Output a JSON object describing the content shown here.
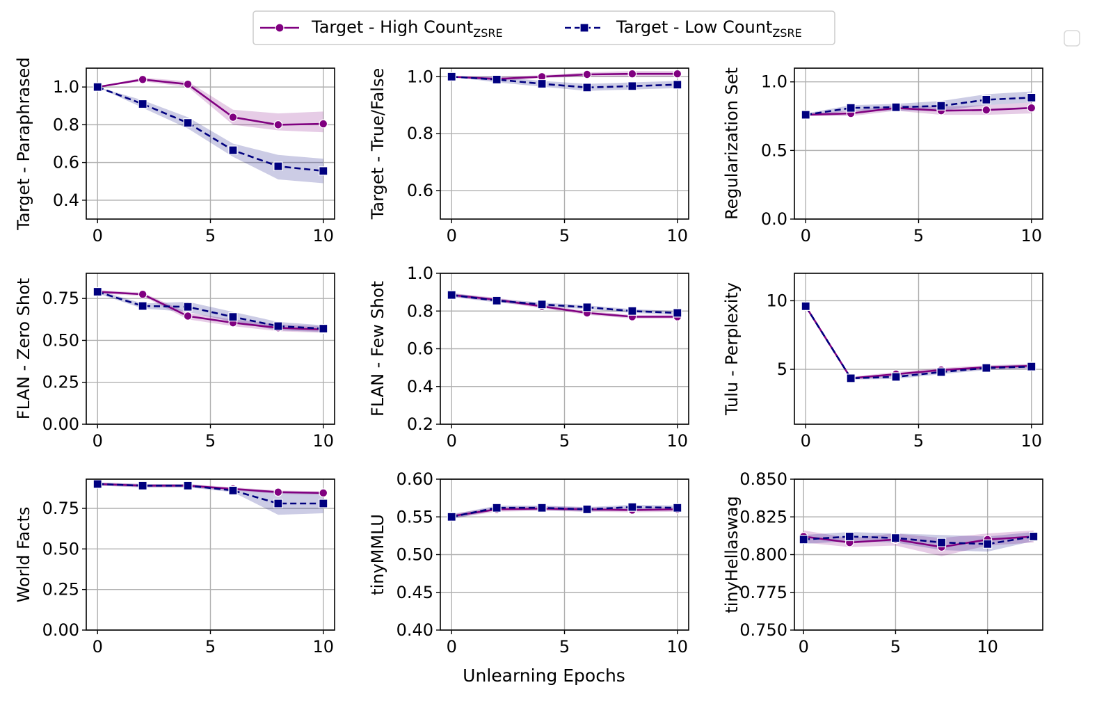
{
  "figure": {
    "xlabel": "Unlearning Epochs",
    "legend": {
      "placement": "top-center",
      "entries": [
        {
          "name": "Target - High Count",
          "sub": "ZSRE",
          "color": "#800080",
          "marker": "circle",
          "dash": "solid"
        },
        {
          "name": "Target - Low Count",
          "sub": "ZSRE",
          "color": "#00007f",
          "marker": "square",
          "dash": "dashed"
        }
      ]
    }
  },
  "chart_data": [
    {
      "type": "line",
      "ylabel": "Target - Paraphrased",
      "xlim": [
        -0.5,
        10.5
      ],
      "ylim": [
        0.3,
        1.1
      ],
      "xticks": [
        0,
        5,
        10
      ],
      "yticks": [
        0.4,
        0.6,
        0.8,
        1.0
      ],
      "ytick_labels": [
        "0.4",
        "0.6",
        "0.8",
        "1.0"
      ],
      "x": [
        0,
        2,
        4,
        6,
        8,
        10
      ],
      "series": [
        {
          "name": "Target - High Count ZSRE",
          "values": [
            1.0,
            1.04,
            1.015,
            0.84,
            0.8,
            0.805
          ],
          "band": [
            [
              1.0,
              1.0
            ],
            [
              1.03,
              1.05
            ],
            [
              1.0,
              1.03
            ],
            [
              0.8,
              0.88
            ],
            [
              0.77,
              0.86
            ],
            [
              0.76,
              0.87
            ]
          ]
        },
        {
          "name": "Target - Low Count ZSRE",
          "values": [
            1.0,
            0.91,
            0.81,
            0.665,
            0.58,
            0.555
          ],
          "band": [
            [
              1.0,
              1.0
            ],
            [
              0.89,
              0.93
            ],
            [
              0.78,
              0.84
            ],
            [
              0.63,
              0.7
            ],
            [
              0.51,
              0.64
            ],
            [
              0.49,
              0.62
            ]
          ]
        }
      ]
    },
    {
      "type": "line",
      "ylabel": "Target - True/False",
      "xlim": [
        -0.5,
        10.5
      ],
      "ylim": [
        0.5,
        1.03
      ],
      "xticks": [
        0,
        5,
        10
      ],
      "yticks": [
        0.6,
        0.8,
        1.0
      ],
      "ytick_labels": [
        "0.6",
        "0.8",
        "1.0"
      ],
      "x": [
        0,
        2,
        4,
        6,
        8,
        10
      ],
      "series": [
        {
          "name": "Target - High Count ZSRE",
          "values": [
            1.0,
            0.992,
            1.0,
            1.008,
            1.01,
            1.01
          ],
          "band": [
            [
              1.0,
              1.0
            ],
            [
              0.985,
              1.0
            ],
            [
              0.995,
              1.005
            ],
            [
              1.0,
              1.015
            ],
            [
              1.0,
              1.02
            ],
            [
              1.0,
              1.02
            ]
          ]
        },
        {
          "name": "Target - Low Count ZSRE",
          "values": [
            1.0,
            0.99,
            0.975,
            0.962,
            0.967,
            0.972
          ],
          "band": [
            [
              1.0,
              1.0
            ],
            [
              0.98,
              1.0
            ],
            [
              0.965,
              0.985
            ],
            [
              0.95,
              0.975
            ],
            [
              0.955,
              0.98
            ],
            [
              0.96,
              0.985
            ]
          ]
        }
      ]
    },
    {
      "type": "line",
      "ylabel": "Regularization Set",
      "xlim": [
        -0.5,
        10.5
      ],
      "ylim": [
        0.0,
        1.1
      ],
      "xticks": [
        0,
        5,
        10
      ],
      "yticks": [
        0.0,
        0.5,
        1.0
      ],
      "ytick_labels": [
        "0.0",
        "0.5",
        "1.0"
      ],
      "x": [
        0,
        2,
        4,
        6,
        8,
        10
      ],
      "series": [
        {
          "name": "Target - High Count ZSRE",
          "values": [
            0.76,
            0.77,
            0.81,
            0.79,
            0.795,
            0.81
          ],
          "band": [
            [
              0.75,
              0.77
            ],
            [
              0.75,
              0.79
            ],
            [
              0.79,
              0.83
            ],
            [
              0.76,
              0.82
            ],
            [
              0.76,
              0.83
            ],
            [
              0.77,
              0.85
            ]
          ]
        },
        {
          "name": "Target - Low Count ZSRE",
          "values": [
            0.76,
            0.81,
            0.815,
            0.825,
            0.87,
            0.885
          ],
          "band": [
            [
              0.75,
              0.77
            ],
            [
              0.79,
              0.83
            ],
            [
              0.79,
              0.84
            ],
            [
              0.79,
              0.86
            ],
            [
              0.83,
              0.91
            ],
            [
              0.85,
              0.93
            ]
          ]
        }
      ]
    },
    {
      "type": "line",
      "ylabel": "FLAN - Zero Shot",
      "xlim": [
        -0.5,
        10.5
      ],
      "ylim": [
        0.0,
        0.9
      ],
      "xticks": [
        0,
        5,
        10
      ],
      "yticks": [
        0.0,
        0.25,
        0.5,
        0.75
      ],
      "ytick_labels": [
        "0.00",
        "0.25",
        "0.50",
        "0.75"
      ],
      "x": [
        0,
        2,
        4,
        6,
        8,
        10
      ],
      "series": [
        {
          "name": "Target - High Count ZSRE",
          "values": [
            0.79,
            0.775,
            0.645,
            0.605,
            0.575,
            0.565
          ],
          "band": [
            [
              0.78,
              0.8
            ],
            [
              0.765,
              0.785
            ],
            [
              0.625,
              0.665
            ],
            [
              0.585,
              0.625
            ],
            [
              0.555,
              0.595
            ],
            [
              0.545,
              0.585
            ]
          ]
        },
        {
          "name": "Target - Low Count ZSRE",
          "values": [
            0.79,
            0.705,
            0.7,
            0.64,
            0.585,
            0.57
          ],
          "band": [
            [
              0.78,
              0.8
            ],
            [
              0.69,
              0.72
            ],
            [
              0.67,
              0.73
            ],
            [
              0.61,
              0.67
            ],
            [
              0.56,
              0.61
            ],
            [
              0.55,
              0.59
            ]
          ]
        }
      ]
    },
    {
      "type": "line",
      "ylabel": "FLAN - Few Shot",
      "xlim": [
        -0.5,
        10.5
      ],
      "ylim": [
        0.2,
        1.0
      ],
      "xticks": [
        0,
        5,
        10
      ],
      "yticks": [
        0.2,
        0.4,
        0.6,
        0.8,
        1.0
      ],
      "ytick_labels": [
        "0.2",
        "0.4",
        "0.6",
        "0.8",
        "1.0"
      ],
      "x": [
        0,
        2,
        4,
        6,
        8,
        10
      ],
      "series": [
        {
          "name": "Target - High Count ZSRE",
          "values": [
            0.885,
            0.86,
            0.825,
            0.79,
            0.77,
            0.77
          ],
          "band": [
            [
              0.875,
              0.895
            ],
            [
              0.85,
              0.87
            ],
            [
              0.815,
              0.835
            ],
            [
              0.78,
              0.8
            ],
            [
              0.76,
              0.78
            ],
            [
              0.76,
              0.78
            ]
          ]
        },
        {
          "name": "Target - Low Count ZSRE",
          "values": [
            0.885,
            0.855,
            0.835,
            0.82,
            0.8,
            0.79
          ],
          "band": [
            [
              0.875,
              0.895
            ],
            [
              0.845,
              0.865
            ],
            [
              0.825,
              0.845
            ],
            [
              0.81,
              0.83
            ],
            [
              0.79,
              0.81
            ],
            [
              0.78,
              0.8
            ]
          ]
        }
      ]
    },
    {
      "type": "line",
      "ylabel": "Tulu - Perplexity",
      "xlim": [
        -0.5,
        10.5
      ],
      "ylim": [
        1.0,
        12.0
      ],
      "xticks": [
        0,
        5,
        10
      ],
      "yticks": [
        5,
        10
      ],
      "ytick_labels": [
        "5",
        "10"
      ],
      "x": [
        0,
        2,
        4,
        6,
        8,
        10
      ],
      "series": [
        {
          "name": "Target - High Count ZSRE",
          "values": [
            9.6,
            4.35,
            4.65,
            4.95,
            5.15,
            5.25
          ],
          "band": [
            [
              9.5,
              9.7
            ],
            [
              4.25,
              4.45
            ],
            [
              4.5,
              4.8
            ],
            [
              4.8,
              5.1
            ],
            [
              5.0,
              5.3
            ],
            [
              5.1,
              5.4
            ]
          ]
        },
        {
          "name": "Target - Low Count ZSRE",
          "values": [
            9.6,
            4.35,
            4.45,
            4.8,
            5.1,
            5.2
          ],
          "band": [
            [
              9.5,
              9.7
            ],
            [
              4.25,
              4.45
            ],
            [
              4.3,
              4.6
            ],
            [
              4.65,
              4.95
            ],
            [
              4.95,
              5.25
            ],
            [
              5.05,
              5.35
            ]
          ]
        }
      ]
    },
    {
      "type": "line",
      "ylabel": "World Facts",
      "xlim": [
        -0.5,
        10.5
      ],
      "ylim": [
        0.0,
        0.93
      ],
      "xticks": [
        0,
        5,
        10
      ],
      "yticks": [
        0.0,
        0.25,
        0.5,
        0.75
      ],
      "ytick_labels": [
        "0.00",
        "0.25",
        "0.50",
        "0.75"
      ],
      "x": [
        0,
        2,
        4,
        6,
        8,
        10
      ],
      "series": [
        {
          "name": "Target - High Count ZSRE",
          "values": [
            0.9,
            0.89,
            0.89,
            0.87,
            0.85,
            0.845
          ],
          "band": [
            [
              0.89,
              0.91
            ],
            [
              0.88,
              0.9
            ],
            [
              0.88,
              0.9
            ],
            [
              0.86,
              0.88
            ],
            [
              0.84,
              0.86
            ],
            [
              0.835,
              0.855
            ]
          ]
        },
        {
          "name": "Target - Low Count ZSRE",
          "values": [
            0.9,
            0.89,
            0.89,
            0.86,
            0.78,
            0.78
          ],
          "band": [
            [
              0.89,
              0.91
            ],
            [
              0.88,
              0.9
            ],
            [
              0.88,
              0.9
            ],
            [
              0.85,
              0.87
            ],
            [
              0.71,
              0.85
            ],
            [
              0.72,
              0.84
            ]
          ]
        }
      ]
    },
    {
      "type": "line",
      "ylabel": "tinyMMLU",
      "xlim": [
        -0.5,
        10.5
      ],
      "ylim": [
        0.4,
        0.6
      ],
      "xticks": [
        0,
        5,
        10
      ],
      "yticks": [
        0.4,
        0.45,
        0.5,
        0.55,
        0.6
      ],
      "ytick_labels": [
        "0.40",
        "0.45",
        "0.50",
        "0.55",
        "0.60"
      ],
      "x": [
        0,
        2,
        4,
        6,
        8,
        10
      ],
      "series": [
        {
          "name": "Target - High Count ZSRE",
          "values": [
            0.551,
            0.56,
            0.561,
            0.56,
            0.559,
            0.56
          ],
          "band": [
            [
              0.548,
              0.554
            ],
            [
              0.557,
              0.563
            ],
            [
              0.558,
              0.564
            ],
            [
              0.557,
              0.563
            ],
            [
              0.556,
              0.562
            ],
            [
              0.557,
              0.563
            ]
          ]
        },
        {
          "name": "Target - Low Count ZSRE",
          "values": [
            0.55,
            0.562,
            0.562,
            0.56,
            0.563,
            0.562
          ],
          "band": [
            [
              0.547,
              0.553
            ],
            [
              0.559,
              0.565
            ],
            [
              0.559,
              0.565
            ],
            [
              0.557,
              0.563
            ],
            [
              0.56,
              0.566
            ],
            [
              0.559,
              0.565
            ]
          ]
        }
      ]
    },
    {
      "type": "line",
      "ylabel": "tinyHellaswag",
      "xlim": [
        -0.5,
        13.0
      ],
      "ylim": [
        0.75,
        0.85
      ],
      "xticks": [
        0,
        5,
        10
      ],
      "yticks": [
        0.75,
        0.775,
        0.8,
        0.825,
        0.85
      ],
      "ytick_labels": [
        "0.750",
        "0.775",
        "0.800",
        "0.825",
        "0.850"
      ],
      "x": [
        0,
        2.5,
        5,
        7.5,
        10,
        12.5
      ],
      "series": [
        {
          "name": "Target - High Count ZSRE",
          "values": [
            0.812,
            0.808,
            0.81,
            0.805,
            0.81,
            0.812
          ],
          "band": [
            [
              0.808,
              0.816
            ],
            [
              0.805,
              0.811
            ],
            [
              0.806,
              0.814
            ],
            [
              0.799,
              0.811
            ],
            [
              0.806,
              0.814
            ],
            [
              0.808,
              0.816
            ]
          ]
        },
        {
          "name": "Target - Low Count ZSRE",
          "values": [
            0.81,
            0.812,
            0.811,
            0.808,
            0.807,
            0.812
          ],
          "band": [
            [
              0.807,
              0.813
            ],
            [
              0.809,
              0.815
            ],
            [
              0.808,
              0.814
            ],
            [
              0.803,
              0.813
            ],
            [
              0.802,
              0.812
            ],
            [
              0.809,
              0.815
            ]
          ]
        }
      ]
    }
  ]
}
